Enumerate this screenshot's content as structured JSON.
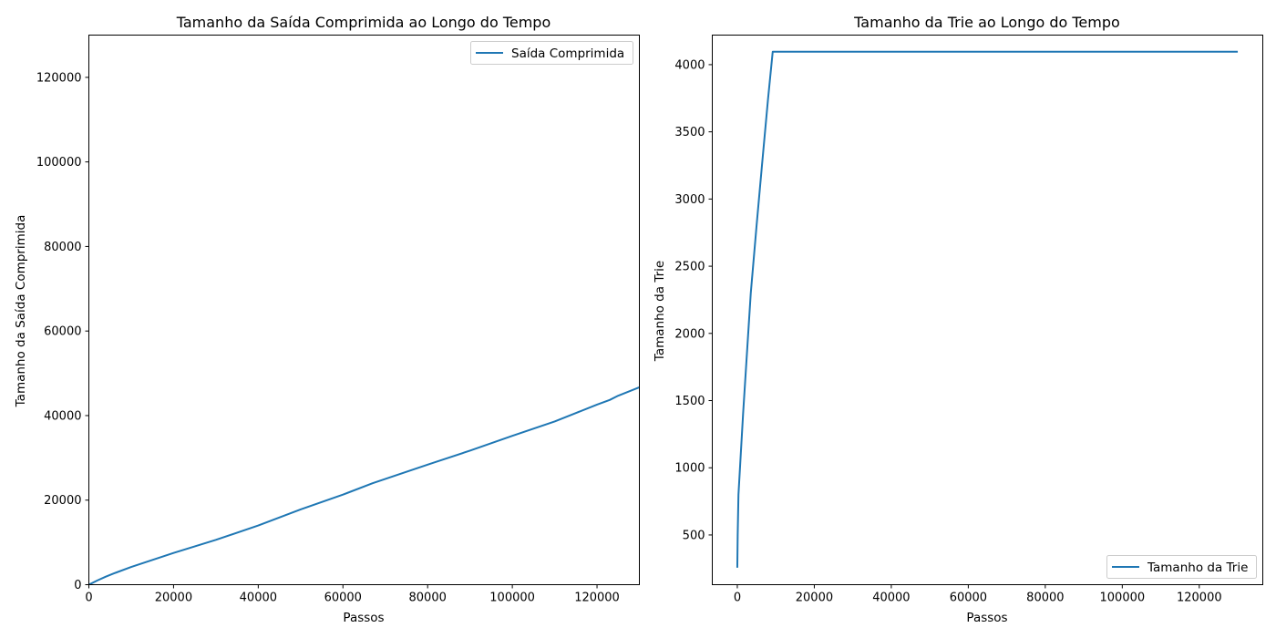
{
  "chart_data": [
    {
      "type": "line",
      "title": "Tamanho da Saída Comprimida ao Longo do Tempo",
      "xlabel": "Passos",
      "ylabel": "Tamanho da Saída Comprimida",
      "xlim": [
        0,
        130000
      ],
      "ylim": [
        0,
        130000
      ],
      "xticks": [
        0,
        20000,
        40000,
        60000,
        80000,
        100000,
        120000
      ],
      "xtick_labels": [
        "0",
        "20000",
        "40000",
        "60000",
        "80000",
        "100000",
        "120000"
      ],
      "yticks": [
        0,
        20000,
        40000,
        60000,
        80000,
        100000,
        120000
      ],
      "ytick_labels": [
        "0",
        "20000",
        "40000",
        "60000",
        "80000",
        "100000",
        "120000"
      ],
      "legend_position": "top-right",
      "grid": false,
      "series": [
        {
          "name": "Saída Comprimida",
          "color": "#1f77b4",
          "x": [
            0,
            2000,
            4000,
            6000,
            10000,
            20000,
            30000,
            40000,
            50000,
            60000,
            67000,
            80000,
            90000,
            100000,
            110000,
            115000,
            120000,
            123000,
            125000,
            130000
          ],
          "y": [
            0,
            1000,
            1900,
            2700,
            4200,
            7500,
            10600,
            14000,
            17800,
            21300,
            24000,
            28400,
            31700,
            35200,
            38600,
            40600,
            42600,
            43700,
            44700,
            46700
          ]
        }
      ]
    },
    {
      "type": "line",
      "title": "Tamanho da Trie ao Longo do Tempo",
      "xlabel": "Passos",
      "ylabel": "Tamanho da Trie",
      "xlim": [
        -6500,
        136500
      ],
      "ylim": [
        130,
        4220
      ],
      "xticks": [
        0,
        20000,
        40000,
        60000,
        80000,
        100000,
        120000
      ],
      "xtick_labels": [
        "0",
        "20000",
        "40000",
        "60000",
        "80000",
        "100000",
        "120000"
      ],
      "yticks": [
        500,
        1000,
        1500,
        2000,
        2500,
        3000,
        3500,
        4000
      ],
      "ytick_labels": [
        "500",
        "1000",
        "1500",
        "2000",
        "2500",
        "3000",
        "3500",
        "4000"
      ],
      "legend_position": "bottom-right",
      "grid": false,
      "series": [
        {
          "name": "Tamanho da Trie",
          "color": "#1f77b4",
          "x": [
            0,
            100,
            300,
            800,
            1500,
            2500,
            3500,
            5000,
            6500,
            8000,
            9200,
            9500,
            10000,
            20000,
            40000,
            60000,
            80000,
            100000,
            120000,
            130000
          ],
          "y": [
            256,
            500,
            800,
            1050,
            1400,
            1850,
            2300,
            2800,
            3280,
            3750,
            4096,
            4096,
            4096,
            4096,
            4096,
            4096,
            4096,
            4096,
            4096,
            4096
          ]
        }
      ]
    }
  ]
}
